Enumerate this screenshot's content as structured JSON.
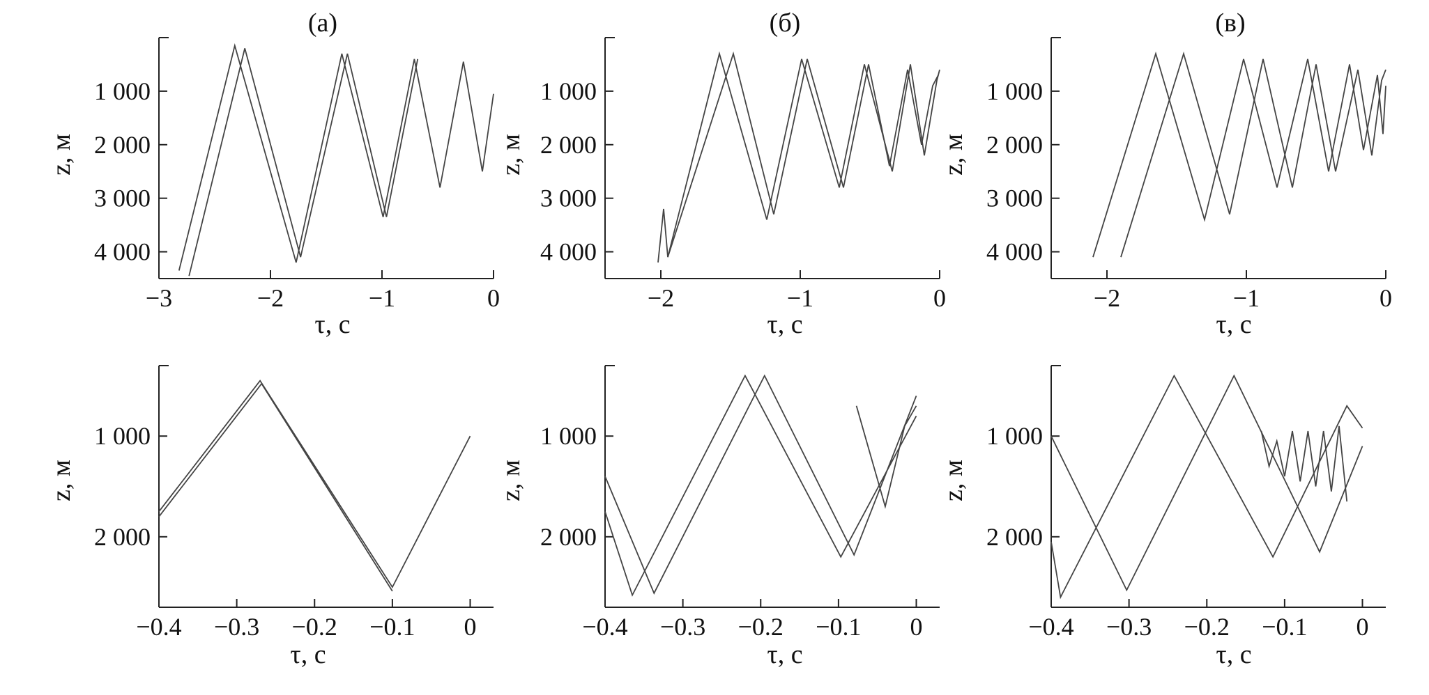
{
  "chart_data": [
    {
      "type": "line",
      "title": "(а)",
      "xlabel": "τ, с",
      "ylabel": "z, м",
      "xlim": [
        -3,
        0
      ],
      "ylim": [
        4500,
        0
      ],
      "xticks": [
        -3,
        -2,
        -1,
        0
      ],
      "xtick_labels": [
        "−3",
        "−2",
        "−1",
        "0"
      ],
      "yticks": [
        1000,
        2000,
        3000,
        4000
      ],
      "ytick_labels": [
        "1 000",
        "2 000",
        "3 000",
        "4 000"
      ],
      "series": [
        {
          "x": [
            -2.82,
            -2.32,
            -1.77,
            -1.36,
            -0.99,
            -0.71,
            -0.48,
            -0.27,
            -0.1,
            0.0
          ],
          "y": [
            4350,
            150,
            4200,
            300,
            3350,
            400,
            2800,
            450,
            2500,
            1050
          ]
        },
        {
          "x": [
            -2.73,
            -2.23,
            -1.73,
            -1.31,
            -0.96,
            -0.68
          ],
          "y": [
            4450,
            200,
            4100,
            300,
            3350,
            400
          ]
        }
      ]
    },
    {
      "type": "line",
      "title": "(б)",
      "xlabel": "τ, с",
      "ylabel": "z, м",
      "xlim": [
        -2.4,
        0
      ],
      "ylim": [
        4500,
        0
      ],
      "xticks": [
        -2,
        -1,
        0
      ],
      "xtick_labels": [
        "−2",
        "−1",
        "0"
      ],
      "yticks": [
        1000,
        2000,
        3000,
        4000
      ],
      "ytick_labels": [
        "1 000",
        "2 000",
        "3 000",
        "4 000"
      ],
      "series": [
        {
          "x": [
            -2.02,
            -1.98,
            -1.95,
            -1.58,
            -1.24,
            -0.99,
            -0.72,
            -0.54,
            -0.34,
            -0.21,
            -0.11,
            -0.02,
            0.0
          ],
          "y": [
            4200,
            3200,
            4100,
            300,
            3400,
            400,
            2800,
            500,
            2500,
            500,
            2200,
            800,
            600
          ]
        },
        {
          "x": [
            -1.95,
            -1.48,
            -1.19,
            -0.95,
            -0.69,
            -0.51,
            -0.36,
            -0.23,
            -0.13,
            -0.05,
            -0.01
          ],
          "y": [
            4100,
            300,
            3300,
            400,
            2800,
            500,
            2400,
            600,
            2000,
            900,
            700
          ]
        }
      ]
    },
    {
      "type": "line",
      "title": "(в)",
      "xlabel": "τ, с",
      "ylabel": "z, м",
      "xlim": [
        -2.4,
        0
      ],
      "ylim": [
        4500,
        0
      ],
      "xticks": [
        -2,
        -1,
        0
      ],
      "xtick_labels": [
        "−2",
        "−1",
        "0"
      ],
      "yticks": [
        1000,
        2000,
        3000,
        4000
      ],
      "ytick_labels": [
        "1 000",
        "2 000",
        "3 000",
        "4 000"
      ],
      "series": [
        {
          "x": [
            -2.1,
            -1.65,
            -1.3,
            -1.02,
            -0.78,
            -0.56,
            -0.41,
            -0.26,
            -0.16,
            -0.06,
            -0.02,
            0.0
          ],
          "y": [
            4100,
            300,
            3400,
            400,
            2800,
            400,
            2500,
            500,
            2100,
            700,
            1800,
            900
          ]
        },
        {
          "x": [
            -1.9,
            -1.45,
            -1.12,
            -0.88,
            -0.67,
            -0.5,
            -0.36,
            -0.2,
            -0.1,
            -0.03,
            0.0
          ],
          "y": [
            4100,
            300,
            3300,
            400,
            2800,
            500,
            2500,
            600,
            2200,
            800,
            600
          ]
        }
      ]
    },
    {
      "type": "line",
      "title": "",
      "xlabel": "τ, с",
      "ylabel": "z, м",
      "xlim": [
        -0.4,
        0.03
      ],
      "ylim": [
        2700,
        300
      ],
      "xticks": [
        -0.4,
        -0.3,
        -0.2,
        -0.1,
        0
      ],
      "xtick_labels": [
        "−0.4",
        "−0.3",
        "−0.2",
        "−0.1",
        "0"
      ],
      "yticks": [
        1000,
        2000
      ],
      "ytick_labels": [
        "1 000",
        "2 000"
      ],
      "series": [
        {
          "x": [
            -0.4,
            -0.27,
            -0.1,
            0.0
          ],
          "y": [
            1750,
            450,
            2500,
            1000
          ]
        },
        {
          "x": [
            -0.4,
            -0.268,
            -0.1
          ],
          "y": [
            1800,
            480,
            2540
          ]
        }
      ]
    },
    {
      "type": "line",
      "title": "",
      "xlabel": "τ, с",
      "ylabel": "z, м",
      "xlim": [
        -0.4,
        0.03
      ],
      "ylim": [
        2700,
        300
      ],
      "xticks": [
        -0.4,
        -0.3,
        -0.2,
        -0.1,
        0
      ],
      "xtick_labels": [
        "−0.4",
        "−0.3",
        "−0.2",
        "−0.1",
        "0"
      ],
      "yticks": [
        1000,
        2000
      ],
      "ytick_labels": [
        "1 000",
        "2 000"
      ],
      "series": [
        {
          "x": [
            -0.4,
            -0.365,
            -0.22,
            -0.097,
            0.0
          ],
          "y": [
            1750,
            2580,
            400,
            2200,
            800
          ]
        },
        {
          "x": [
            -0.4,
            -0.337,
            -0.195,
            -0.08,
            0.0
          ],
          "y": [
            1400,
            2560,
            400,
            2180,
            600
          ]
        },
        {
          "x": [
            -0.077,
            -0.04,
            -0.015,
            0.0
          ],
          "y": [
            700,
            1700,
            900,
            700
          ]
        }
      ]
    },
    {
      "type": "line",
      "title": "",
      "xlabel": "τ, с",
      "ylabel": "z, м",
      "xlim": [
        -0.4,
        0.03
      ],
      "ylim": [
        2700,
        300
      ],
      "xticks": [
        -0.4,
        -0.3,
        -0.2,
        -0.1,
        0
      ],
      "xtick_labels": [
        "−0.4",
        "−0.3",
        "−0.2",
        "−0.1",
        "0"
      ],
      "yticks": [
        1000,
        2000
      ],
      "ytick_labels": [
        "1 000",
        "2 000"
      ],
      "series": [
        {
          "x": [
            -0.4,
            -0.388,
            -0.242,
            -0.115,
            -0.02,
            0.0
          ],
          "y": [
            2050,
            2600,
            400,
            2200,
            700,
            920
          ]
        },
        {
          "x": [
            -0.4,
            -0.303,
            -0.165,
            -0.055,
            0.0
          ],
          "y": [
            1000,
            2530,
            400,
            2150,
            1100
          ]
        },
        {
          "x": [
            -0.13,
            -0.12,
            -0.11,
            -0.1,
            -0.09,
            -0.08,
            -0.07,
            -0.06,
            -0.05,
            -0.04,
            -0.03,
            -0.02
          ],
          "y": [
            950,
            1300,
            1050,
            1400,
            950,
            1450,
            950,
            1500,
            950,
            1550,
            900,
            1650
          ]
        }
      ]
    }
  ]
}
